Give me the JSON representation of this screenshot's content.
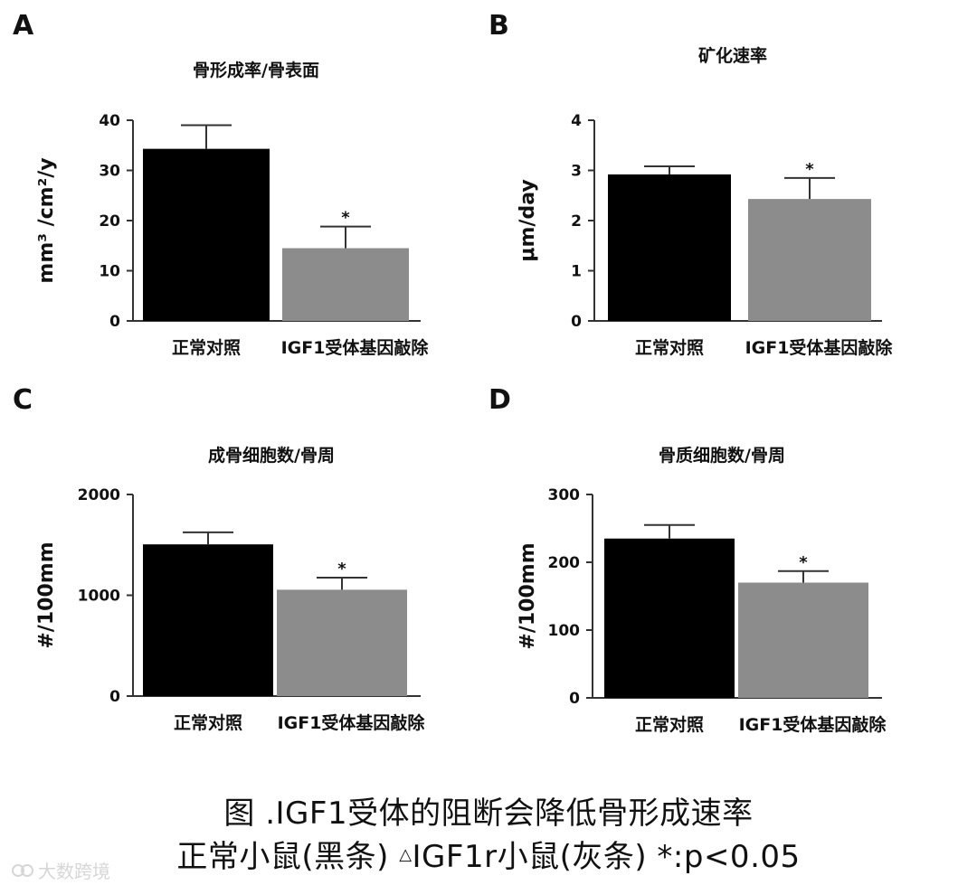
{
  "chart_data": [
    {
      "panel": "A",
      "type": "bar",
      "title": "骨形成率/骨表面",
      "ylabel": "mm³ /cm²/y",
      "categories": [
        "正常对照",
        "IGF1受体基因敲除"
      ],
      "values": [
        34.3,
        14.5
      ],
      "errors": [
        4.7,
        4.3
      ],
      "significance": [
        "",
        "*"
      ],
      "ylim": [
        0,
        40
      ],
      "yticks": [
        "0",
        "10",
        "20",
        "30",
        "40"
      ],
      "colors": [
        "#000000",
        "#8c8c8c"
      ]
    },
    {
      "panel": "B",
      "type": "bar",
      "title": "矿化速率",
      "ylabel": "μm/day",
      "categories": [
        "正常对照",
        "IGF1受体基因敲除"
      ],
      "values": [
        2.92,
        2.43
      ],
      "errors": [
        0.16,
        0.42
      ],
      "significance": [
        "",
        "*"
      ],
      "ylim": [
        0,
        4
      ],
      "yticks": [
        "0",
        "1",
        "2",
        "3",
        "4"
      ],
      "colors": [
        "#000000",
        "#8c8c8c"
      ]
    },
    {
      "panel": "C",
      "type": "bar",
      "title": "成骨细胞数/骨周",
      "ylabel": "#/100mm",
      "categories": [
        "正常对照",
        "IGF1受体基因敲除"
      ],
      "values": [
        1505,
        1055
      ],
      "errors": [
        120,
        120
      ],
      "significance": [
        "",
        "*"
      ],
      "ylim": [
        0,
        2000
      ],
      "yticks": [
        "0",
        "1000",
        "2000"
      ],
      "colors": [
        "#000000",
        "#8c8c8c"
      ]
    },
    {
      "panel": "D",
      "type": "bar",
      "title": "骨质细胞数/骨周",
      "ylabel": "#/100mm",
      "categories": [
        "正常对照",
        "IGF1受体基因敲除"
      ],
      "values": [
        235,
        170
      ],
      "errors": [
        20,
        17
      ],
      "significance": [
        "",
        "*"
      ],
      "ylim": [
        0,
        300
      ],
      "yticks": [
        "0",
        "100",
        "200",
        "300"
      ],
      "colors": [
        "#000000",
        "#8c8c8c"
      ]
    }
  ],
  "caption": {
    "line1": "图 .IGF1受体的阻断会降低骨形成速率",
    "line2_a": "正常小鼠(黑条) ",
    "line2_tri": "△",
    "line2_b": "IGF1r小鼠(灰条)   *:p<0.05"
  },
  "watermark": {
    "text": "大数跨境"
  }
}
